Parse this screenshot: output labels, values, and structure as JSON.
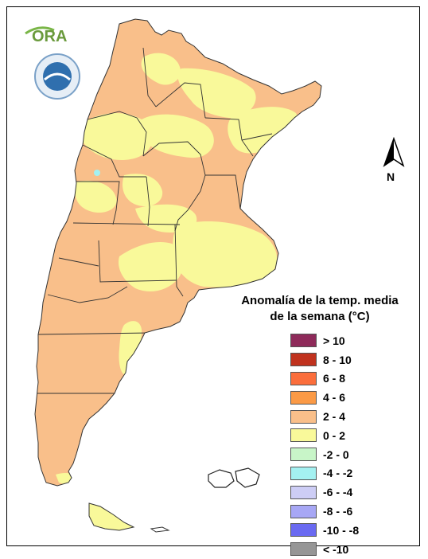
{
  "logo": {
    "text": "ORA"
  },
  "north": {
    "label": "N"
  },
  "legend": {
    "title_line1": "Anomalía de la temp. media",
    "title_line2": "de la semana (°C)",
    "items": [
      {
        "label": "> 10",
        "color": "#8e2a5a"
      },
      {
        "label": "8 - 10",
        "color": "#c0321e"
      },
      {
        "label": "6 - 8",
        "color": "#fb6e3c"
      },
      {
        "label": "4 - 6",
        "color": "#fb9a46"
      },
      {
        "label": "2 - 4",
        "color": "#f9bf8a"
      },
      {
        "label": "0 - 2",
        "color": "#f9f99a"
      },
      {
        "label": "-2 - 0",
        "color": "#c8f5c8"
      },
      {
        "label": "-4 - -2",
        "color": "#a4f1f1"
      },
      {
        "label": "-6 - -4",
        "color": "#cdcdf5"
      },
      {
        "label": "-8 - -6",
        "color": "#a7a7f5"
      },
      {
        "label": "-10 - -8",
        "color": "#6a6af1"
      },
      {
        "label": "< -10",
        "color": "#969696"
      }
    ]
  },
  "map_colors": {
    "anomaly_2_4": "#f9bf8a",
    "anomaly_0_2": "#f9f99a",
    "anomaly_neg4_neg2": "#a4f1f1",
    "borders": "#333333"
  }
}
